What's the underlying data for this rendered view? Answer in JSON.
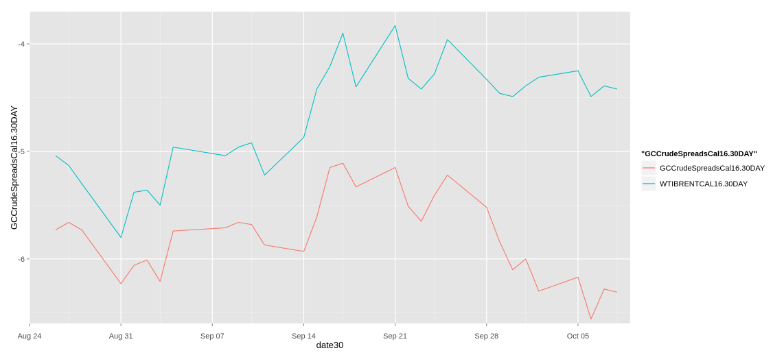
{
  "chart_data": {
    "type": "line",
    "xlabel": "date30",
    "ylabel": "GCCrudeSpreadsCal16.30DAY",
    "x_ticks": [
      "Aug 24",
      "Aug 31",
      "Sep 07",
      "Sep 14",
      "Sep 21",
      "Sep 28",
      "Oct 05"
    ],
    "x_tick_dates": [
      "2015-08-24",
      "2015-08-31",
      "2015-09-07",
      "2015-09-14",
      "2015-09-21",
      "2015-09-28",
      "2015-10-05"
    ],
    "y_ticks": [
      -4,
      -5,
      -6
    ],
    "y_tick_labels": [
      "-4",
      "-5",
      "-6"
    ],
    "xlim": [
      "2015-08-24",
      "2015-10-09"
    ],
    "ylim": [
      -6.6,
      -3.7
    ],
    "grid": true,
    "legend": {
      "title": "\"GCCrudeSpreadsCal16.30DAY\"",
      "position": "right"
    },
    "series": [
      {
        "name": "GCCrudeSpreadsCal16.30DAY",
        "color": "#F8766D",
        "points": [
          [
            "2015-08-26",
            -5.73
          ],
          [
            "2015-08-27",
            -5.66
          ],
          [
            "2015-08-28",
            -5.73
          ],
          [
            "2015-08-31",
            -6.23
          ],
          [
            "2015-09-01",
            -6.06
          ],
          [
            "2015-09-02",
            -6.01
          ],
          [
            "2015-09-03",
            -6.21
          ],
          [
            "2015-09-04",
            -5.74
          ],
          [
            "2015-09-08",
            -5.71
          ],
          [
            "2015-09-09",
            -5.66
          ],
          [
            "2015-09-10",
            -5.68
          ],
          [
            "2015-09-11",
            -5.87
          ],
          [
            "2015-09-14",
            -5.93
          ],
          [
            "2015-09-15",
            -5.61
          ],
          [
            "2015-09-16",
            -5.15
          ],
          [
            "2015-09-17",
            -5.11
          ],
          [
            "2015-09-18",
            -5.33
          ],
          [
            "2015-09-21",
            -5.15
          ],
          [
            "2015-09-22",
            -5.51
          ],
          [
            "2015-09-23",
            -5.65
          ],
          [
            "2015-09-24",
            -5.41
          ],
          [
            "2015-09-25",
            -5.22
          ],
          [
            "2015-09-28",
            -5.52
          ],
          [
            "2015-09-29",
            -5.84
          ],
          [
            "2015-09-30",
            -6.1
          ],
          [
            "2015-10-01",
            -6.0
          ],
          [
            "2015-10-02",
            -6.3
          ],
          [
            "2015-10-05",
            -6.17
          ],
          [
            "2015-10-06",
            -6.56
          ],
          [
            "2015-10-07",
            -6.28
          ],
          [
            "2015-10-08",
            -6.31
          ]
        ]
      },
      {
        "name": "WTIBRENTCAL16.30DAY",
        "color": "#00BFC4",
        "points": [
          [
            "2015-08-26",
            -5.04
          ],
          [
            "2015-08-27",
            -5.13
          ],
          [
            "2015-08-28",
            -5.3
          ],
          [
            "2015-08-31",
            -5.8
          ],
          [
            "2015-09-01",
            -5.38
          ],
          [
            "2015-09-02",
            -5.36
          ],
          [
            "2015-09-03",
            -5.5
          ],
          [
            "2015-09-04",
            -4.96
          ],
          [
            "2015-09-08",
            -5.04
          ],
          [
            "2015-09-09",
            -4.96
          ],
          [
            "2015-09-10",
            -4.92
          ],
          [
            "2015-09-11",
            -5.22
          ],
          [
            "2015-09-14",
            -4.87
          ],
          [
            "2015-09-15",
            -4.42
          ],
          [
            "2015-09-16",
            -4.21
          ],
          [
            "2015-09-17",
            -3.9
          ],
          [
            "2015-09-18",
            -4.4
          ],
          [
            "2015-09-21",
            -3.83
          ],
          [
            "2015-09-22",
            -4.32
          ],
          [
            "2015-09-23",
            -4.42
          ],
          [
            "2015-09-24",
            -4.28
          ],
          [
            "2015-09-25",
            -3.96
          ],
          [
            "2015-09-28",
            -4.33
          ],
          [
            "2015-09-29",
            -4.46
          ],
          [
            "2015-09-30",
            -4.49
          ],
          [
            "2015-10-01",
            -4.39
          ],
          [
            "2015-10-02",
            -4.31
          ],
          [
            "2015-10-05",
            -4.25
          ],
          [
            "2015-10-06",
            -4.49
          ],
          [
            "2015-10-07",
            -4.39
          ],
          [
            "2015-10-08",
            -4.42
          ]
        ]
      }
    ]
  }
}
